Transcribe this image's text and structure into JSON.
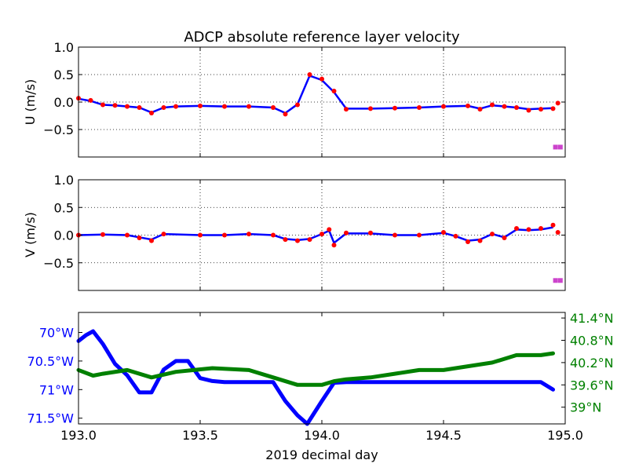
{
  "chart_data": [
    {
      "type": "scatter",
      "title": "ADCP absolute reference layer velocity",
      "ylabel": "U (m/s)",
      "xlim": [
        193.0,
        195.0
      ],
      "ylim": [
        -1.0,
        1.0
      ],
      "yticks": [
        1.0,
        0.5,
        0.0,
        -0.5
      ],
      "ytick_labels": [
        "1.0",
        "0.5",
        "0.0",
        "−0.5"
      ],
      "grid": true,
      "raw_color": "#ff0000",
      "smooth_color": "#0000ff",
      "flag_color": "#cc44cc",
      "raw": {
        "x": [
          193.0,
          193.05,
          193.1,
          193.15,
          193.2,
          193.25,
          193.3,
          193.35,
          193.4,
          193.5,
          193.6,
          193.7,
          193.8,
          193.85,
          193.9,
          193.95,
          194.0,
          194.05,
          194.1,
          194.2,
          194.3,
          194.4,
          194.5,
          194.6,
          194.65,
          194.7,
          194.75,
          194.8,
          194.85,
          194.9,
          194.95,
          194.97
        ],
        "y": [
          0.07,
          0.03,
          -0.05,
          -0.06,
          -0.08,
          -0.1,
          -0.2,
          -0.1,
          -0.08,
          -0.07,
          -0.08,
          -0.08,
          -0.1,
          -0.22,
          -0.05,
          0.5,
          0.42,
          0.2,
          -0.13,
          -0.12,
          -0.11,
          -0.1,
          -0.08,
          -0.07,
          -0.13,
          -0.05,
          -0.08,
          -0.1,
          -0.15,
          -0.13,
          -0.12,
          -0.02
        ]
      },
      "smoothed": {
        "x": [
          193.0,
          193.05,
          193.1,
          193.15,
          193.2,
          193.25,
          193.3,
          193.35,
          193.4,
          193.5,
          193.6,
          193.7,
          193.8,
          193.85,
          193.9,
          193.95,
          194.0,
          194.05,
          194.1,
          194.2,
          194.3,
          194.4,
          194.5,
          194.6,
          194.65,
          194.7,
          194.75,
          194.8,
          194.85,
          194.9,
          194.95
        ],
        "y": [
          0.06,
          0.02,
          -0.05,
          -0.06,
          -0.08,
          -0.1,
          -0.19,
          -0.1,
          -0.08,
          -0.07,
          -0.08,
          -0.08,
          -0.1,
          -0.2,
          -0.04,
          0.48,
          0.4,
          0.18,
          -0.12,
          -0.12,
          -0.11,
          -0.1,
          -0.08,
          -0.07,
          -0.12,
          -0.06,
          -0.08,
          -0.1,
          -0.13,
          -0.12,
          -0.11
        ]
      },
      "flagged": {
        "x": [
          194.96,
          194.98
        ],
        "y": [
          -0.82,
          -0.82
        ]
      }
    },
    {
      "type": "scatter",
      "ylabel": "V (m/s)",
      "xlim": [
        193.0,
        195.0
      ],
      "ylim": [
        -1.0,
        1.0
      ],
      "yticks": [
        1.0,
        0.5,
        0.0,
        -0.5
      ],
      "ytick_labels": [
        "1.0",
        "0.5",
        "0.0",
        "−0.5"
      ],
      "grid": true,
      "raw_color": "#ff0000",
      "smooth_color": "#0000ff",
      "flag_color": "#cc44cc",
      "raw": {
        "x": [
          193.0,
          193.1,
          193.2,
          193.25,
          193.3,
          193.35,
          193.5,
          193.6,
          193.7,
          193.8,
          193.85,
          193.9,
          193.95,
          194.0,
          194.03,
          194.05,
          194.1,
          194.2,
          194.3,
          194.4,
          194.5,
          194.55,
          194.6,
          194.65,
          194.7,
          194.75,
          194.8,
          194.85,
          194.9,
          194.95,
          194.97
        ],
        "y": [
          0.0,
          0.01,
          0.0,
          -0.05,
          -0.1,
          0.02,
          0.0,
          0.0,
          0.02,
          0.0,
          -0.08,
          -0.1,
          -0.08,
          0.02,
          0.1,
          -0.18,
          0.04,
          0.04,
          0.0,
          0.0,
          0.05,
          -0.02,
          -0.12,
          -0.1,
          0.02,
          -0.05,
          0.12,
          0.1,
          0.12,
          0.18,
          0.05
        ]
      },
      "smoothed": {
        "x": [
          193.0,
          193.1,
          193.2,
          193.25,
          193.3,
          193.35,
          193.5,
          193.6,
          193.7,
          193.8,
          193.85,
          193.9,
          193.95,
          194.0,
          194.03,
          194.05,
          194.1,
          194.2,
          194.3,
          194.4,
          194.5,
          194.55,
          194.6,
          194.65,
          194.7,
          194.75,
          194.8,
          194.85,
          194.9,
          194.95
        ],
        "y": [
          0.0,
          0.01,
          0.0,
          -0.04,
          -0.08,
          0.02,
          0.0,
          0.0,
          0.02,
          0.0,
          -0.07,
          -0.09,
          -0.07,
          0.02,
          0.08,
          -0.14,
          0.03,
          0.03,
          0.0,
          0.0,
          0.04,
          -0.02,
          -0.1,
          -0.08,
          0.02,
          -0.04,
          0.1,
          0.09,
          0.1,
          0.14
        ]
      },
      "flagged": {
        "x": [
          194.96,
          194.98
        ],
        "y": [
          -0.82,
          -0.82
        ]
      }
    },
    {
      "type": "line",
      "xlabel": "2019 decimal day",
      "xlim": [
        193.0,
        195.0
      ],
      "xticks": [
        193.0,
        193.5,
        194.0,
        194.5,
        195.0
      ],
      "xtick_labels": [
        "193.0",
        "193.5",
        "194.0",
        "194.5",
        "195.0"
      ],
      "left_axis": {
        "quantity": "longitude",
        "color": "#0000ff",
        "ylim": [
          -71.6,
          -69.65
        ],
        "yticks": [
          -70.0,
          -70.5,
          -71.0,
          -71.5
        ],
        "ytick_labels": [
          "70°W",
          "70.5°W",
          "71°W",
          "71.5°W"
        ]
      },
      "right_axis": {
        "quantity": "latitude",
        "color": "#008000",
        "ylim": [
          38.55,
          41.55
        ],
        "yticks": [
          41.4,
          40.8,
          40.2,
          39.6,
          39.0
        ],
        "ytick_labels": [
          "41.4°N",
          "40.8°N",
          "40.2°N",
          "39.6°N",
          "39°N"
        ]
      },
      "series": [
        {
          "axis": "left",
          "x": [
            193.0,
            193.03,
            193.06,
            193.1,
            193.15,
            193.2,
            193.25,
            193.3,
            193.35,
            193.4,
            193.45,
            193.5,
            193.55,
            193.6,
            193.7,
            193.8,
            193.85,
            193.9,
            193.94,
            194.0,
            194.05,
            194.1,
            194.2,
            194.4,
            194.6,
            194.8,
            194.9,
            194.95
          ],
          "y": [
            -70.15,
            -70.05,
            -69.98,
            -70.2,
            -70.55,
            -70.75,
            -71.05,
            -71.05,
            -70.65,
            -70.5,
            -70.5,
            -70.8,
            -70.85,
            -70.87,
            -70.87,
            -70.87,
            -71.2,
            -71.45,
            -71.6,
            -71.2,
            -70.88,
            -70.87,
            -70.87,
            -70.87,
            -70.87,
            -70.87,
            -70.87,
            -71.0
          ]
        },
        {
          "axis": "right",
          "x": [
            193.0,
            193.06,
            193.1,
            193.2,
            193.3,
            193.4,
            193.55,
            193.7,
            193.8,
            193.9,
            194.0,
            194.05,
            194.1,
            194.2,
            194.3,
            194.4,
            194.5,
            194.6,
            194.7,
            194.8,
            194.9,
            194.95
          ],
          "y": [
            40.0,
            39.85,
            39.9,
            40.0,
            39.8,
            39.95,
            40.05,
            40.0,
            39.8,
            39.6,
            39.6,
            39.7,
            39.75,
            39.8,
            39.9,
            40.0,
            40.0,
            40.1,
            40.2,
            40.4,
            40.4,
            40.45
          ]
        }
      ]
    }
  ]
}
